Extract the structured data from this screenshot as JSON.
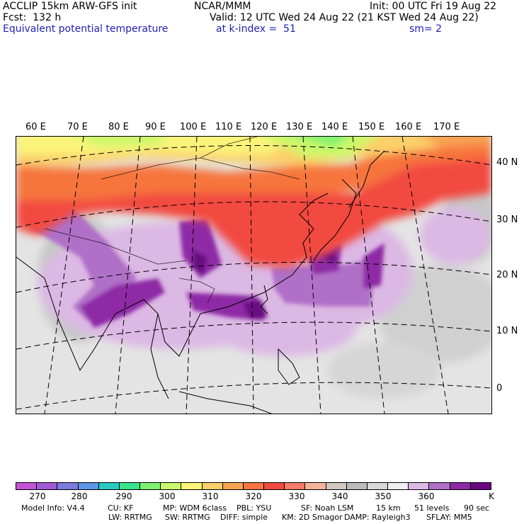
{
  "header": {
    "line1_left": "ACCLIP 15km ARW-GFS init",
    "line1_center": "NCAR/MMM",
    "line1_right": "Init: 00 UTC Fri 19 Aug 22",
    "line2_left": "Fcst:  132 h",
    "line2_right": "Valid: 12 UTC Wed 24 Aug 22 (21 KST Wed 24 Aug 22)",
    "line3_left": "Equivalent potential temperature",
    "line3_center": "at k-index =  51",
    "line3_right": "sm= 2"
  },
  "map": {
    "lon_labels": [
      "60 E",
      "70 E",
      "80 E",
      "90 E",
      "100 E",
      "110 E",
      "120 E",
      "130 E",
      "140 E",
      "150 E",
      "160 E",
      "170 E"
    ],
    "lat_labels": [
      "40 N",
      "30 N",
      "20 N",
      "10 N",
      "0"
    ]
  },
  "colorbar": {
    "colors": [
      "#c454d6",
      "#a05ad8",
      "#7d7ae0",
      "#5b96e8",
      "#28cbc0",
      "#3ae58e",
      "#7ef270",
      "#cdf76a",
      "#fbf47a",
      "#fbd06a",
      "#f8a352",
      "#f7743e",
      "#f24a40",
      "#f77a6a",
      "#f4b49c",
      "#d2c6c0",
      "#bcbcbc",
      "#d8d8d8",
      "#f0f0f0",
      "#dcb8e4",
      "#b070c8",
      "#8e2aa6",
      "#6a0a82"
    ],
    "labels": [
      "270",
      "280",
      "290",
      "300",
      "310",
      "320",
      "330",
      "340",
      "350",
      "360"
    ],
    "unit": "K"
  },
  "footer": {
    "row1": [
      "Model Info: V4.4",
      "CU: KF",
      "MP: WDM 6class",
      "PBL: YSU",
      "SF: Noah LSM",
      "15 km",
      "51 levels",
      "90 sec"
    ],
    "row2": [
      "LW: RRTMG",
      "SW: RRTMG",
      "DIFF: simple",
      "KM: 2D Smagor",
      "DAMP: Rayleigh3",
      "SFLAY: MM5"
    ]
  }
}
